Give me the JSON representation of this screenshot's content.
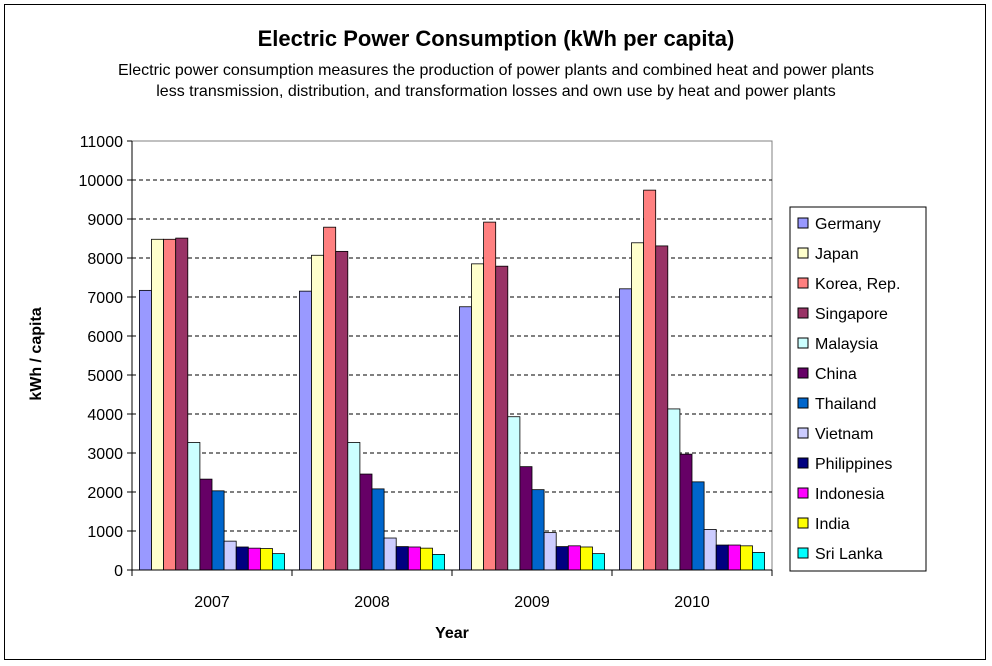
{
  "chart_data": {
    "type": "bar",
    "title": "Electric Power Consumption (kWh per capita)",
    "subtitle": "Electric power consumption measures the production of power plants and combined heat and power plants less transmission, distribution, and transformation losses and own use by heat and power plants",
    "xlabel": "Year",
    "ylabel": "kWh / capita",
    "ylim": [
      0,
      11000
    ],
    "yticks": [
      0,
      1000,
      2000,
      3000,
      4000,
      5000,
      6000,
      7000,
      8000,
      9000,
      10000,
      11000
    ],
    "grid": true,
    "legend_position": "right",
    "categories": [
      "2007",
      "2008",
      "2009",
      "2010"
    ],
    "series": [
      {
        "name": "Germany",
        "color": "#9999FF",
        "values": [
          7170,
          7150,
          6750,
          7210
        ]
      },
      {
        "name": "Japan",
        "color": "#FFFFCC",
        "values": [
          8480,
          8070,
          7850,
          8390
        ]
      },
      {
        "name": "Korea, Rep.",
        "color": "#FF8080",
        "values": [
          8480,
          8790,
          8920,
          9740
        ]
      },
      {
        "name": "Singapore",
        "color": "#993366",
        "values": [
          8510,
          8170,
          7790,
          8310
        ]
      },
      {
        "name": "Malaysia",
        "color": "#CCFFFF",
        "values": [
          3270,
          3270,
          3930,
          4130
        ]
      },
      {
        "name": "China",
        "color": "#660066",
        "values": [
          2330,
          2460,
          2650,
          2970
        ]
      },
      {
        "name": "Thailand",
        "color": "#0066CC",
        "values": [
          2030,
          2080,
          2060,
          2260
        ]
      },
      {
        "name": "Vietnam",
        "color": "#CCCCFF",
        "values": [
          740,
          820,
          960,
          1040
        ]
      },
      {
        "name": "Philippines",
        "color": "#000080",
        "values": [
          590,
          600,
          600,
          640
        ]
      },
      {
        "name": "Indonesia",
        "color": "#FF00FF",
        "values": [
          560,
          590,
          620,
          640
        ]
      },
      {
        "name": "India",
        "color": "#FFFF00",
        "values": [
          550,
          560,
          590,
          620
        ]
      },
      {
        "name": "Sri Lanka",
        "color": "#00FFFF",
        "values": [
          420,
          400,
          420,
          450
        ]
      }
    ]
  }
}
